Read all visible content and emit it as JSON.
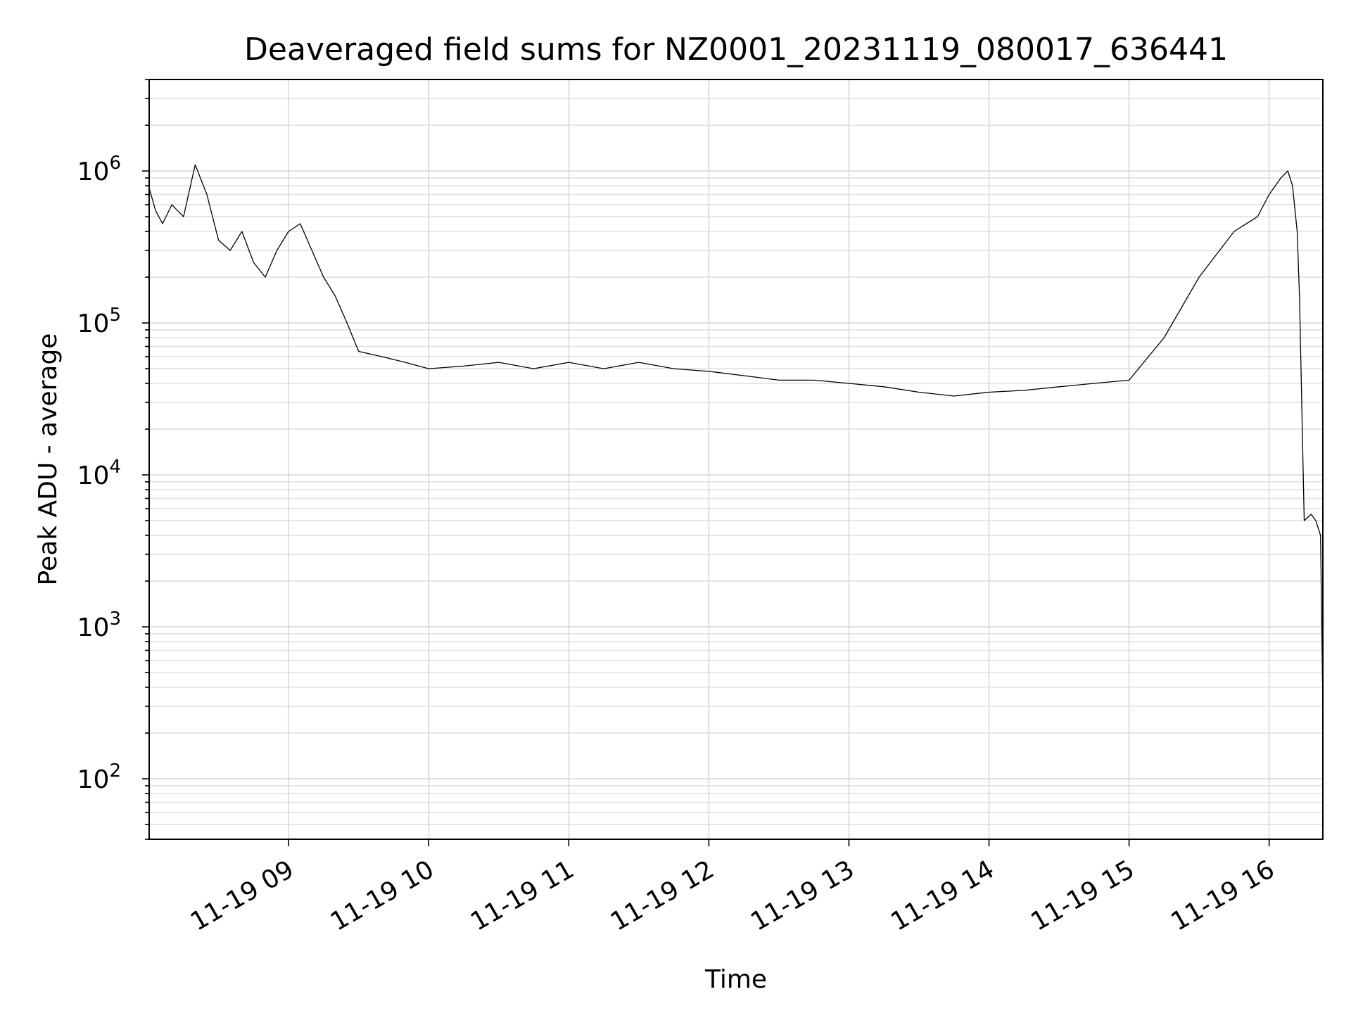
{
  "chart_data": {
    "type": "line",
    "title": "Deaveraged field sums for NZ0001_20231119_080017_636441",
    "xlabel": "Time",
    "ylabel": "Peak ADU - average",
    "yscale": "log",
    "ylim": [
      40,
      4000000
    ],
    "xlim": [
      "2023-11-19 08:00:17",
      "2023-11-19 16:23:00"
    ],
    "grid": true,
    "line_color": "#000000",
    "x_tick_labels": [
      "11-19 09",
      "11-19 10",
      "11-19 11",
      "11-19 12",
      "11-19 13",
      "11-19 14",
      "11-19 15",
      "11-19 16"
    ],
    "x_tick_values": [
      "2023-11-19 09:00",
      "2023-11-19 10:00",
      "2023-11-19 11:00",
      "2023-11-19 12:00",
      "2023-11-19 13:00",
      "2023-11-19 14:00",
      "2023-11-19 15:00",
      "2023-11-19 16:00"
    ],
    "y_tick_values": [
      100,
      1000,
      10000,
      100000,
      1000000
    ],
    "y_tick_labels": [
      {
        "base": "10",
        "exp": "2"
      },
      {
        "base": "10",
        "exp": "3"
      },
      {
        "base": "10",
        "exp": "4"
      },
      {
        "base": "10",
        "exp": "5"
      },
      {
        "base": "10",
        "exp": "6"
      }
    ],
    "series": [
      {
        "x": [
          "2023-11-19 08:00",
          "2023-11-19 08:03",
          "2023-11-19 08:06",
          "2023-11-19 08:10",
          "2023-11-19 08:15",
          "2023-11-19 08:20",
          "2023-11-19 08:25",
          "2023-11-19 08:30",
          "2023-11-19 08:35",
          "2023-11-19 08:40",
          "2023-11-19 08:45",
          "2023-11-19 08:50",
          "2023-11-19 08:55",
          "2023-11-19 09:00",
          "2023-11-19 09:05",
          "2023-11-19 09:10",
          "2023-11-19 09:15",
          "2023-11-19 09:20",
          "2023-11-19 09:25",
          "2023-11-19 09:30",
          "2023-11-19 09:40",
          "2023-11-19 09:50",
          "2023-11-19 10:00",
          "2023-11-19 10:15",
          "2023-11-19 10:30",
          "2023-11-19 10:45",
          "2023-11-19 11:00",
          "2023-11-19 11:15",
          "2023-11-19 11:30",
          "2023-11-19 11:45",
          "2023-11-19 12:00",
          "2023-11-19 12:15",
          "2023-11-19 12:30",
          "2023-11-19 12:45",
          "2023-11-19 13:00",
          "2023-11-19 13:15",
          "2023-11-19 13:30",
          "2023-11-19 13:45",
          "2023-11-19 14:00",
          "2023-11-19 14:15",
          "2023-11-19 14:30",
          "2023-11-19 14:45",
          "2023-11-19 15:00",
          "2023-11-19 15:15",
          "2023-11-19 15:30",
          "2023-11-19 15:45",
          "2023-11-19 15:55",
          "2023-11-19 16:00",
          "2023-11-19 16:05",
          "2023-11-19 16:08",
          "2023-11-19 16:10",
          "2023-11-19 16:12",
          "2023-11-19 16:13",
          "2023-11-19 16:15",
          "2023-11-19 16:18",
          "2023-11-19 16:20",
          "2023-11-19 16:22",
          "2023-11-19 16:23"
        ],
        "y": [
          800000,
          550000,
          450000,
          600000,
          500000,
          1100000,
          700000,
          350000,
          300000,
          400000,
          250000,
          200000,
          300000,
          400000,
          450000,
          300000,
          200000,
          150000,
          100000,
          65000,
          60000,
          55000,
          50000,
          52000,
          55000,
          50000,
          55000,
          50000,
          55000,
          50000,
          48000,
          45000,
          42000,
          42000,
          40000,
          38000,
          35000,
          33000,
          35000,
          36000,
          38000,
          40000,
          42000,
          80000,
          200000,
          400000,
          500000,
          700000,
          900000,
          1000000,
          800000,
          400000,
          150000,
          5000,
          5500,
          5000,
          4000,
          300
        ]
      }
    ]
  }
}
